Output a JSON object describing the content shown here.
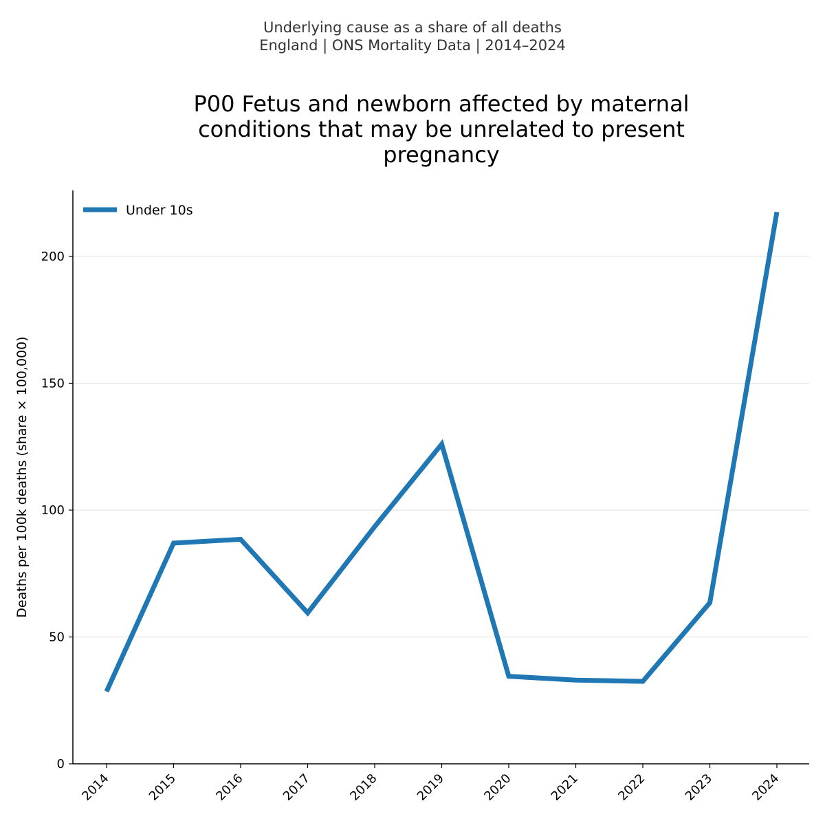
{
  "header": {
    "suptitle_line1": "Underlying cause as a share of all deaths",
    "suptitle_line2": "England | ONS Mortality Data | 2014–2024"
  },
  "colors": {
    "series": "#1f77b4",
    "grid": "#e5e5e5",
    "axis": "#000000"
  },
  "chart_data": {
    "type": "line",
    "title_lines": [
      "P00 Fetus and newborn affected by maternal",
      "conditions that may be unrelated to present",
      "pregnancy"
    ],
    "xlabel": "",
    "ylabel": "Deaths per 100k deaths (share × 100,000)",
    "x": [
      "2014",
      "2015",
      "2016",
      "2017",
      "2018",
      "2019",
      "2020",
      "2021",
      "2022",
      "2023",
      "2024"
    ],
    "series": [
      {
        "name": "Under 10s",
        "values": [
          28.5,
          87,
          88.5,
          59.5,
          93.5,
          126,
          34.5,
          33,
          32.5,
          63.5,
          217.5
        ]
      }
    ],
    "ylim": [
      0,
      226
    ],
    "yticks": [
      0,
      50,
      100,
      150,
      200
    ],
    "grid": "horizontal",
    "legend_position": "top-left"
  }
}
